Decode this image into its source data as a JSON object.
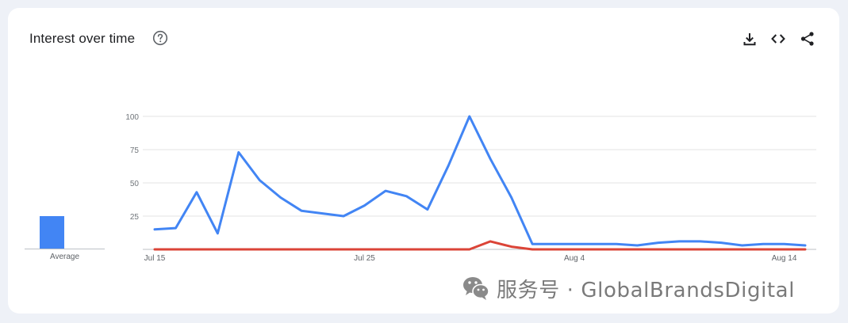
{
  "header": {
    "title": "Interest over time",
    "help_icon": "help-circle-icon",
    "actions": [
      {
        "name": "download-icon"
      },
      {
        "name": "embed-code-icon"
      },
      {
        "name": "share-icon"
      }
    ]
  },
  "average": {
    "label": "Average",
    "value": 25
  },
  "watermark": {
    "logo": "wechat-logo",
    "text": "服务号 · GlobalBrandsDigital"
  },
  "chart_data": {
    "type": "line",
    "ylim": [
      0,
      100
    ],
    "yticks": [
      25,
      50,
      75,
      100
    ],
    "x": [
      "Jul 15",
      "Jul 16",
      "Jul 17",
      "Jul 18",
      "Jul 19",
      "Jul 20",
      "Jul 21",
      "Jul 22",
      "Jul 23",
      "Jul 24",
      "Jul 25",
      "Jul 26",
      "Jul 27",
      "Jul 28",
      "Jul 29",
      "Jul 30",
      "Jul 31",
      "Aug 1",
      "Aug 2",
      "Aug 3",
      "Aug 4",
      "Aug 5",
      "Aug 6",
      "Aug 7",
      "Aug 8",
      "Aug 9",
      "Aug 10",
      "Aug 11",
      "Aug 12",
      "Aug 13",
      "Aug 14",
      "Aug 15"
    ],
    "xticks": [
      "Jul 15",
      "Jul 25",
      "Aug 4",
      "Aug 14"
    ],
    "grid": true,
    "series": [
      {
        "color": "#4285f4",
        "values": [
          15,
          16,
          43,
          12,
          73,
          52,
          39,
          29,
          27,
          25,
          33,
          44,
          40,
          30,
          63,
          100,
          68,
          39,
          4,
          4,
          4,
          4,
          4,
          3,
          5,
          6,
          6,
          5,
          3,
          4,
          4,
          3
        ]
      },
      {
        "color": "#db4437",
        "values": [
          0,
          0,
          0,
          0,
          0,
          0,
          0,
          0,
          0,
          0,
          0,
          0,
          0,
          0,
          0,
          0,
          6,
          2,
          0,
          0,
          0,
          0,
          0,
          0,
          0,
          0,
          0,
          0,
          0,
          0,
          0,
          0
        ]
      }
    ]
  }
}
